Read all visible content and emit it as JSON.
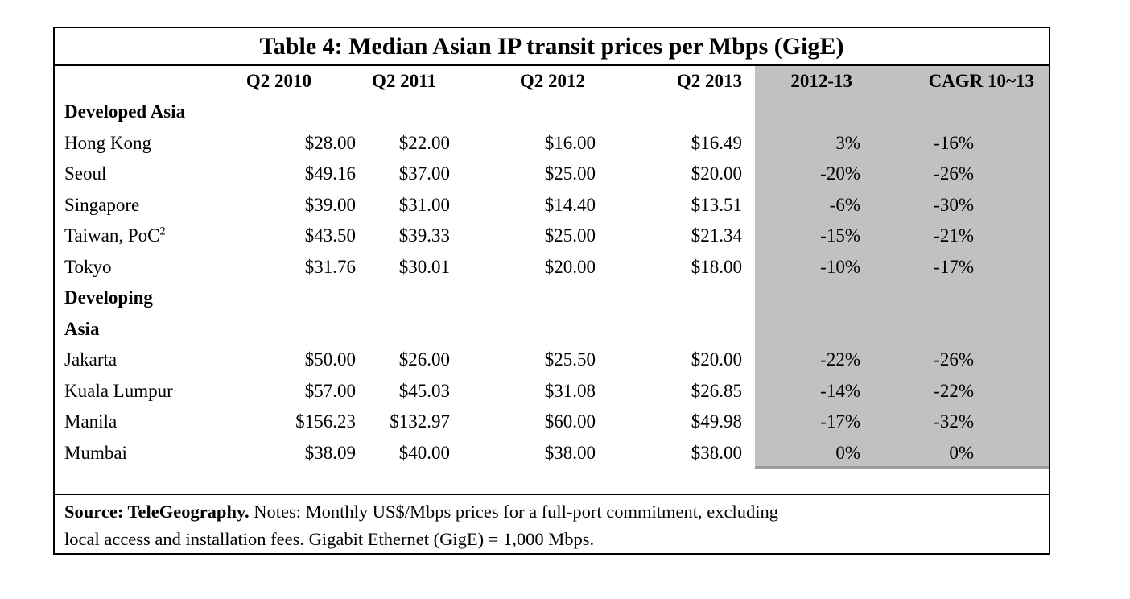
{
  "table_title": "Table 4: Median Asian IP transit prices per Mbps (GigE)",
  "colors": {
    "shaded_column_bg": "#c1c1c1",
    "border": "#000000",
    "background": "#ffffff"
  },
  "table": {
    "headers": [
      "",
      "Q2 2010",
      "Q2 2011",
      "Q2 2012",
      "Q2 2013",
      "2012-13",
      "CAGR 10~13"
    ],
    "shaded_columns": [
      "2012-13",
      "CAGR 10~13"
    ],
    "rows": [
      {
        "type": "section",
        "label": "Developed Asia"
      },
      {
        "type": "data",
        "label": "Hong Kong",
        "values": [
          "$28.00",
          "$22.00",
          "$16.00",
          "$16.49",
          "3%",
          "-16%"
        ]
      },
      {
        "type": "data",
        "label": "Seoul",
        "values": [
          "$49.16",
          "$37.00",
          "$25.00",
          "$20.00",
          "-20%",
          "-26%"
        ]
      },
      {
        "type": "data",
        "label": "Singapore",
        "values": [
          "$39.00",
          "$31.00",
          "$14.40",
          "$13.51",
          "-6%",
          "-30%"
        ]
      },
      {
        "type": "data",
        "label": "Taiwan, PoC",
        "label_sup": "2",
        "values": [
          "$43.50",
          "$39.33",
          "$25.00",
          "$21.34",
          "-15%",
          "-21%"
        ]
      },
      {
        "type": "data",
        "label": "Tokyo",
        "values": [
          "$31.76",
          "$30.01",
          "$20.00",
          "$18.00",
          "-10%",
          "-17%"
        ]
      },
      {
        "type": "section",
        "label": "Developing"
      },
      {
        "type": "section",
        "label": "Asia"
      },
      {
        "type": "data",
        "label": "Jakarta",
        "values": [
          "$50.00",
          "$26.00",
          "$25.50",
          "$20.00",
          "-22%",
          "-26%"
        ]
      },
      {
        "type": "data",
        "label": "Kuala Lumpur",
        "values": [
          "$57.00",
          "$45.03",
          "$31.08",
          "$26.85",
          "-14%",
          "-22%"
        ]
      },
      {
        "type": "data",
        "label": "Manila",
        "values": [
          "$156.23",
          "$132.97",
          "$60.00",
          "$49.98",
          "-17%",
          "-32%"
        ]
      },
      {
        "type": "data",
        "label": "Mumbai",
        "values": [
          "$38.09",
          "$40.00",
          "$38.00",
          "$38.00",
          "0%",
          "0%"
        ]
      }
    ]
  },
  "source": {
    "bold": "Source: TeleGeography.",
    "line1_rest": " Notes: Monthly US$/Mbps prices for a full-port commitment, excluding",
    "line2": "local access and installation fees. Gigabit Ethernet (GigE) = 1,000 Mbps."
  }
}
